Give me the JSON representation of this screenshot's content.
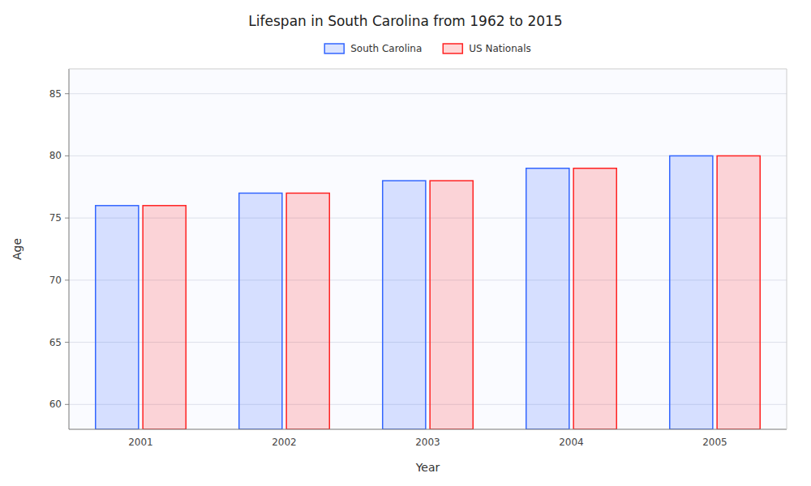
{
  "chart_data": {
    "type": "bar",
    "title": "Lifespan in South Carolina from 1962 to 2015",
    "x_label": "Year",
    "y_label": "Age",
    "categories": [
      "2001",
      "2002",
      "2003",
      "2004",
      "2005"
    ],
    "series": [
      {
        "name": "South Carolina",
        "color": "#3366ff",
        "values": [
          76,
          77,
          78,
          79,
          80
        ]
      },
      {
        "name": "US Nationals",
        "color": "#ff2222",
        "values": [
          76,
          77,
          78,
          79,
          80
        ]
      }
    ],
    "ylim": [
      58,
      87
    ],
    "yticks": [
      60,
      65,
      70,
      75,
      80,
      85
    ],
    "grid": true,
    "legend": "top"
  }
}
